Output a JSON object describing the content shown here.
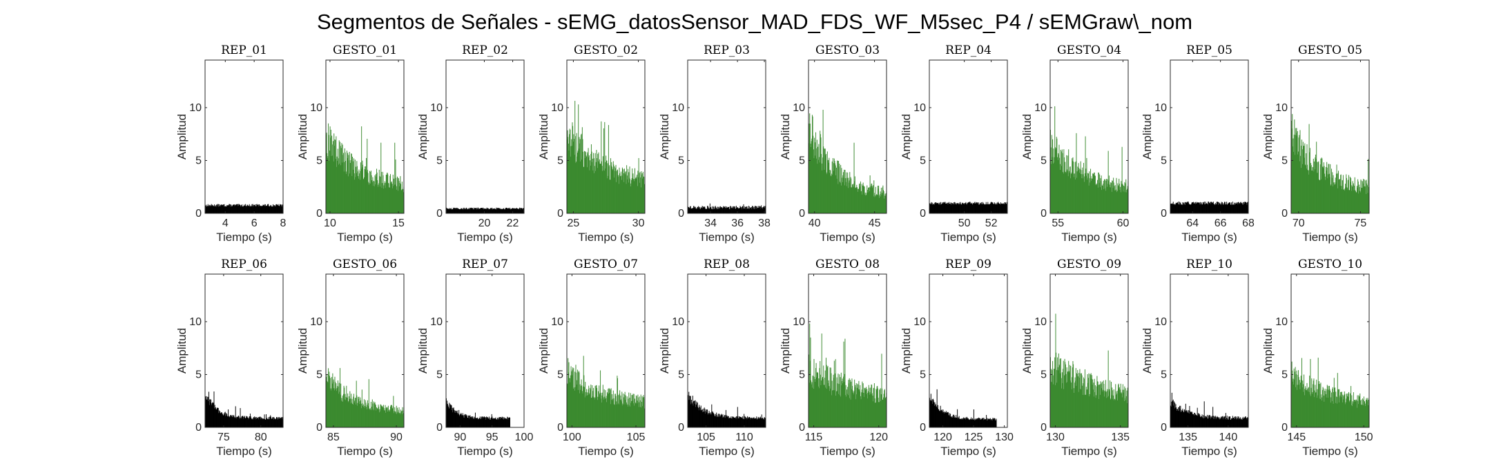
{
  "chart_data": {
    "type": "bar",
    "title": "Segmentos de Señales - sEMG_datosSensor_MAD_FDS_WF_M5sec_P4 / sEMGraw\\_nom",
    "xlabel": "Tiempo (s)",
    "ylabel": "Amplitud",
    "ylim": [
      0,
      14.5
    ],
    "yticks": [
      "0",
      "5",
      "10"
    ],
    "colors": {
      "rep": "#000000",
      "gesto": "#3b8a2f",
      "axis": "#262626"
    },
    "grid": false,
    "panels": [
      {
        "title": "REP_01",
        "kind": "rep",
        "xlim": [
          2.6,
          8
        ],
        "xticks": [
          4,
          6,
          8
        ],
        "profile": {
          "base": 0.75,
          "peak": 0.75,
          "noise": 0.35,
          "decay": 1,
          "spikes": 0
        }
      },
      {
        "title": "GESTO_01",
        "kind": "gesto",
        "xlim": [
          9.7,
          15.4
        ],
        "xticks": [
          10,
          15
        ],
        "profile": {
          "base": 2.2,
          "peak": 7.0,
          "noise": 0.55,
          "decay": 0.45,
          "spikes": 11.7
        }
      },
      {
        "title": "REP_02",
        "kind": "rep",
        "xlim": [
          17.3,
          22.8
        ],
        "xticks": [
          20,
          22
        ],
        "profile": {
          "base": 0.45,
          "peak": 0.45,
          "noise": 0.4,
          "decay": 1,
          "spikes": 0
        }
      },
      {
        "title": "GESTO_02",
        "kind": "gesto",
        "xlim": [
          24.5,
          30.5
        ],
        "xticks": [
          25,
          30
        ],
        "profile": {
          "base": 2.5,
          "peak": 7.5,
          "noise": 0.55,
          "decay": 0.5,
          "spikes": 11.4
        }
      },
      {
        "title": "REP_03",
        "kind": "rep",
        "xlim": [
          32.3,
          38.1
        ],
        "xticks": [
          34,
          36,
          38
        ],
        "profile": {
          "base": 0.55,
          "peak": 0.55,
          "noise": 0.6,
          "decay": 1,
          "spikes": 1.0
        }
      },
      {
        "title": "GESTO_03",
        "kind": "gesto",
        "xlim": [
          39.5,
          46
        ],
        "xticks": [
          40,
          45
        ],
        "profile": {
          "base": 1.5,
          "peak": 8.5,
          "noise": 0.6,
          "decay": 0.35,
          "spikes": 12.8
        }
      },
      {
        "title": "REP_04",
        "kind": "rep",
        "xlim": [
          47.4,
          53.2
        ],
        "xticks": [
          50,
          52
        ],
        "profile": {
          "base": 0.95,
          "peak": 0.95,
          "noise": 0.3,
          "decay": 1,
          "spikes": 0
        }
      },
      {
        "title": "GESTO_04",
        "kind": "gesto",
        "xlim": [
          54.4,
          60.4
        ],
        "xticks": [
          55,
          60
        ],
        "profile": {
          "base": 2.0,
          "peak": 6.5,
          "noise": 0.55,
          "decay": 0.45,
          "spikes": 11.2
        }
      },
      {
        "title": "REP_05",
        "kind": "rep",
        "xlim": [
          62.4,
          68
        ],
        "xticks": [
          64,
          66,
          68
        ],
        "profile": {
          "base": 0.95,
          "peak": 0.95,
          "noise": 0.35,
          "decay": 1,
          "spikes": 0
        }
      },
      {
        "title": "GESTO_05",
        "kind": "gesto",
        "xlim": [
          69.4,
          75.7
        ],
        "xticks": [
          70,
          75
        ],
        "profile": {
          "base": 2.0,
          "peak": 7.5,
          "noise": 0.6,
          "decay": 0.4,
          "spikes": 11.0
        }
      },
      {
        "title": "REP_06",
        "kind": "rep",
        "xlim": [
          72.5,
          83
        ],
        "xticks": [
          75,
          80
        ],
        "profile": {
          "base": 0.85,
          "peak": 3.2,
          "noise": 0.35,
          "decay": 0.15,
          "spikes": 4.6
        }
      },
      {
        "title": "GESTO_06",
        "kind": "gesto",
        "xlim": [
          84.4,
          90.6
        ],
        "xticks": [
          85,
          90
        ],
        "profile": {
          "base": 1.5,
          "peak": 5.0,
          "noise": 0.5,
          "decay": 0.3,
          "spikes": 8.5
        }
      },
      {
        "title": "REP_07",
        "kind": "rep",
        "xlim": [
          87.8,
          100
        ],
        "xticks": [
          90,
          95,
          100
        ],
        "profile": {
          "base": 0.85,
          "peak": 2.5,
          "noise": 0.35,
          "decay": 0.15,
          "spikes": 3.7,
          "end": 0.82
        }
      },
      {
        "title": "GESTO_07",
        "kind": "gesto",
        "xlim": [
          99.6,
          105.7
        ],
        "xticks": [
          100,
          105
        ],
        "profile": {
          "base": 2.0,
          "peak": 5.0,
          "noise": 0.55,
          "decay": 0.5,
          "spikes": 7.9
        }
      },
      {
        "title": "REP_08",
        "kind": "rep",
        "xlim": [
          102.6,
          112.8
        ],
        "xticks": [
          105,
          110
        ],
        "profile": {
          "base": 0.85,
          "peak": 3.0,
          "noise": 0.35,
          "decay": 0.2,
          "spikes": 4.5
        }
      },
      {
        "title": "GESTO_08",
        "kind": "gesto",
        "xlim": [
          114.6,
          120.6
        ],
        "xticks": [
          115,
          120
        ],
        "profile": {
          "base": 2.5,
          "peak": 5.5,
          "noise": 0.6,
          "decay": 0.6,
          "spikes": 11.0
        }
      },
      {
        "title": "REP_09",
        "kind": "rep",
        "xlim": [
          117.8,
          130.5
        ],
        "xticks": [
          120,
          125,
          130
        ],
        "profile": {
          "base": 0.75,
          "peak": 3.0,
          "noise": 0.35,
          "decay": 0.18,
          "spikes": 4.9,
          "end": 0.86
        }
      },
      {
        "title": "GESTO_09",
        "kind": "gesto",
        "xlim": [
          129.6,
          135.6
        ],
        "xticks": [
          130,
          135
        ],
        "profile": {
          "base": 2.5,
          "peak": 6.0,
          "noise": 0.6,
          "decay": 0.6,
          "spikes": 11.0
        }
      },
      {
        "title": "REP_10",
        "kind": "rep",
        "xlim": [
          132.8,
          142.5
        ],
        "xticks": [
          135,
          140
        ],
        "profile": {
          "base": 0.85,
          "peak": 2.5,
          "noise": 0.4,
          "decay": 0.2,
          "spikes": 4.8
        }
      },
      {
        "title": "GESTO_10",
        "kind": "gesto",
        "xlim": [
          144.6,
          150.4
        ],
        "xticks": [
          145,
          150
        ],
        "profile": {
          "base": 2.0,
          "peak": 5.0,
          "noise": 0.55,
          "decay": 0.5,
          "spikes": 8.0
        }
      }
    ]
  }
}
